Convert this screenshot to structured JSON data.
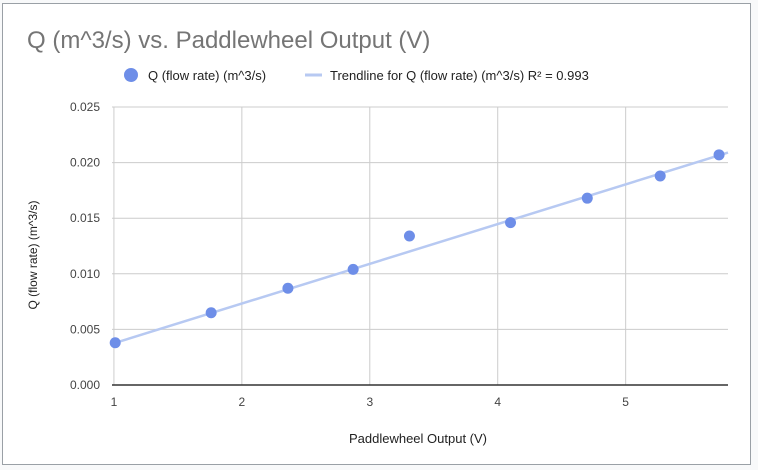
{
  "chart_data": {
    "type": "scatter",
    "title": "Q (m^3/s) vs. Paddlewheel Output (V)",
    "xlabel": "Paddlewheel Output (V)",
    "ylabel": "Q (flow rate) (m^3/s)",
    "xlim": [
      0.985,
      5.8
    ],
    "ylim": [
      0,
      0.025
    ],
    "x_ticks": [
      "1",
      "2",
      "3",
      "4",
      "5"
    ],
    "y_ticks": [
      "0.000",
      "0.005",
      "0.010",
      "0.015",
      "0.020",
      "0.025"
    ],
    "grid": true,
    "legend_position": "top",
    "series": [
      {
        "name": "Q (flow rate) (m^3/s)",
        "color": "#6e8ee8",
        "points": [
          {
            "x": 1.01,
            "y": 0.0038
          },
          {
            "x": 1.76,
            "y": 0.0065
          },
          {
            "x": 2.36,
            "y": 0.0087
          },
          {
            "x": 2.87,
            "y": 0.0104
          },
          {
            "x": 3.31,
            "y": 0.0134
          },
          {
            "x": 4.1,
            "y": 0.0146
          },
          {
            "x": 4.7,
            "y": 0.0168
          },
          {
            "x": 5.27,
            "y": 0.0188
          },
          {
            "x": 5.73,
            "y": 0.0207
          }
        ]
      }
    ],
    "trendline": {
      "name": "Trendline for Q (flow rate) (m^3/s) R² = 0.993",
      "color": "#b7c9f2",
      "x_start": 0.985,
      "x_end": 5.8,
      "y_start": 0.0037,
      "y_end": 0.0209
    }
  }
}
